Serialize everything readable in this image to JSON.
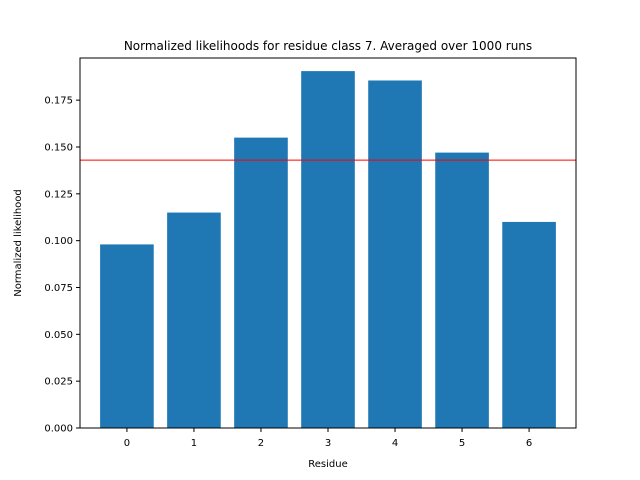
{
  "chart_data": {
    "type": "bar",
    "title": "Normalized likelihoods for residue class 7. Averaged over 1000 runs",
    "xlabel": "Residue",
    "ylabel": "Normalized likelihood",
    "categories": [
      "0",
      "1",
      "2",
      "3",
      "4",
      "5",
      "6"
    ],
    "values": [
      0.098,
      0.115,
      0.155,
      0.1905,
      0.1855,
      0.147,
      0.11
    ],
    "ylim": [
      0,
      0.1975
    ],
    "yticks": [
      "0.000",
      "0.025",
      "0.050",
      "0.075",
      "0.100",
      "0.125",
      "0.150",
      "0.175"
    ],
    "reference_line": {
      "y": 0.143,
      "color": "#ff0000"
    },
    "bar_color": "#1f77b4",
    "grid": false
  }
}
